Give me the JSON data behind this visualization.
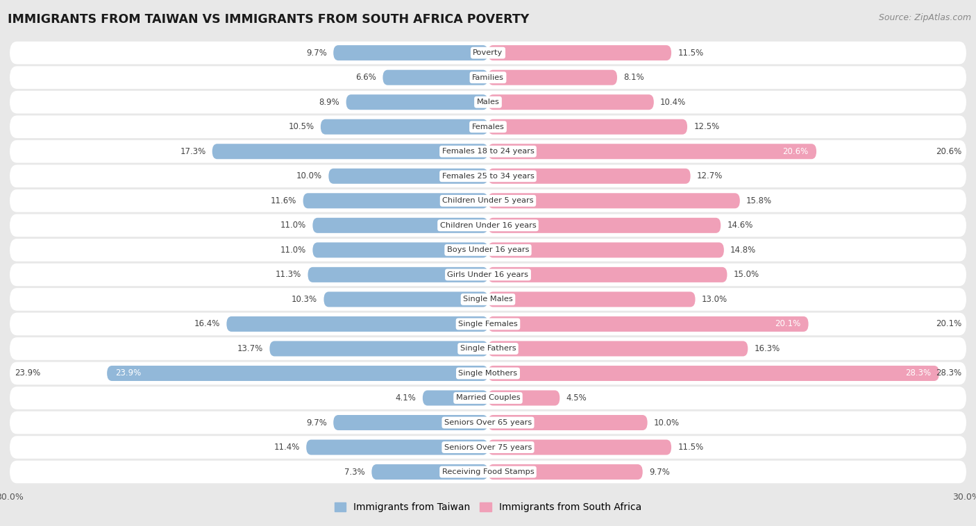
{
  "title": "IMMIGRANTS FROM TAIWAN VS IMMIGRANTS FROM SOUTH AFRICA POVERTY",
  "source": "Source: ZipAtlas.com",
  "categories": [
    "Poverty",
    "Families",
    "Males",
    "Females",
    "Females 18 to 24 years",
    "Females 25 to 34 years",
    "Children Under 5 years",
    "Children Under 16 years",
    "Boys Under 16 years",
    "Girls Under 16 years",
    "Single Males",
    "Single Females",
    "Single Fathers",
    "Single Mothers",
    "Married Couples",
    "Seniors Over 65 years",
    "Seniors Over 75 years",
    "Receiving Food Stamps"
  ],
  "taiwan_values": [
    9.7,
    6.6,
    8.9,
    10.5,
    17.3,
    10.0,
    11.6,
    11.0,
    11.0,
    11.3,
    10.3,
    16.4,
    13.7,
    23.9,
    4.1,
    9.7,
    11.4,
    7.3
  ],
  "south_africa_values": [
    11.5,
    8.1,
    10.4,
    12.5,
    20.6,
    12.7,
    15.8,
    14.6,
    14.8,
    15.0,
    13.0,
    20.1,
    16.3,
    28.3,
    4.5,
    10.0,
    11.5,
    9.7
  ],
  "taiwan_color": "#92b8d9",
  "south_africa_color": "#f0a0b8",
  "background_color": "#e8e8e8",
  "row_bg_color": "#ffffff",
  "xlim": 30.0,
  "bar_height": 0.62,
  "legend_taiwan": "Immigrants from Taiwan",
  "legend_south_africa": "Immigrants from South Africa"
}
